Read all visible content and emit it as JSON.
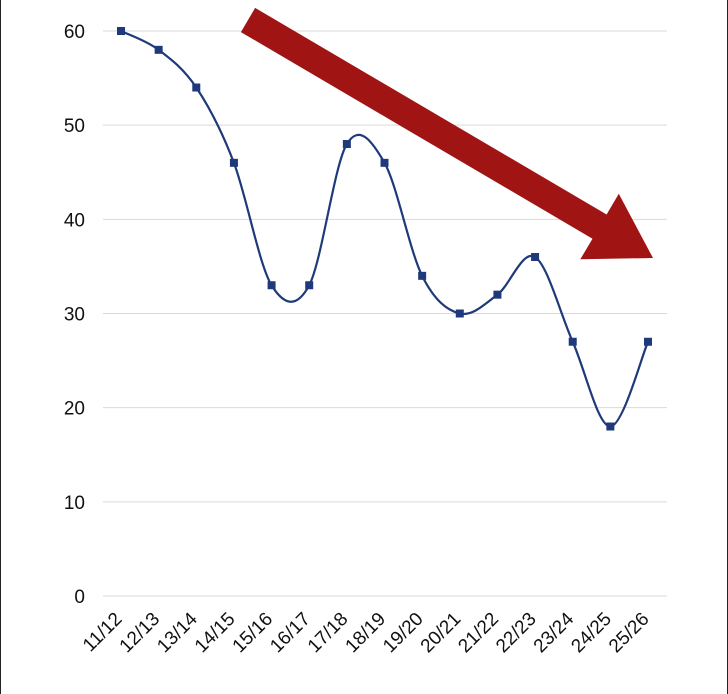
{
  "chart_data": {
    "type": "line",
    "title": "",
    "xlabel": "",
    "ylabel": "",
    "categories": [
      "11/12",
      "12/13",
      "13/14",
      "14/15",
      "15/16",
      "16/17",
      "17/18",
      "18/19",
      "19/20",
      "20/21",
      "21/22",
      "22/23",
      "23/24",
      "24/25",
      "25/26"
    ],
    "series": [
      {
        "values": [
          60,
          58,
          54,
          46,
          33,
          33,
          48,
          46,
          34,
          30,
          32,
          36,
          27,
          18,
          27
        ]
      }
    ],
    "ylim": [
      0,
      60
    ],
    "yticks": [
      0,
      10,
      20,
      30,
      40,
      50,
      60
    ],
    "grid": "horizontal",
    "legend": "none",
    "smooth": true,
    "colors": {
      "line": "#1f3a7a",
      "marker": "#1f3a7a",
      "trend_arrow": "#a01414",
      "grid": "#d9d9d9",
      "text": "#111111"
    },
    "annotations": [
      {
        "type": "trend-arrow",
        "direction": "down-right"
      }
    ]
  }
}
